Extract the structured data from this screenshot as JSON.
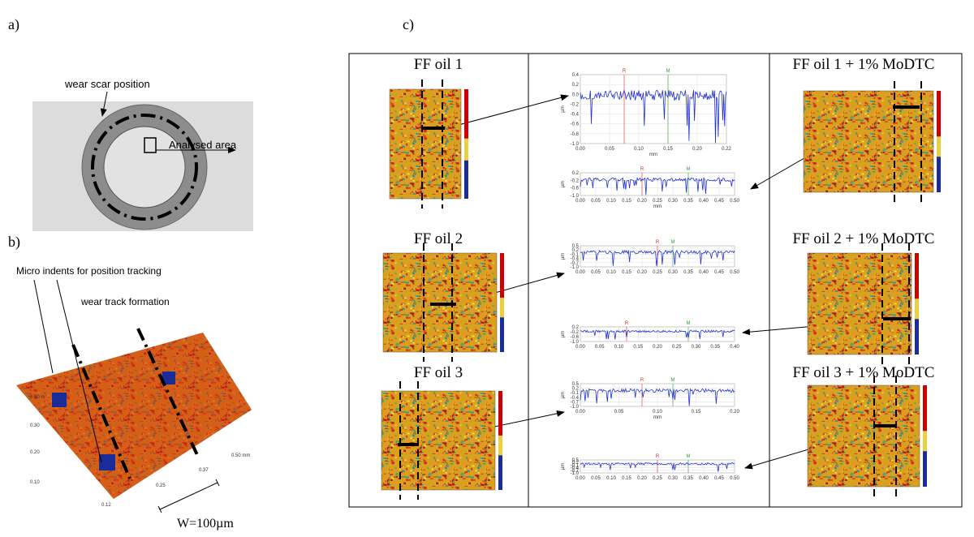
{
  "panels": {
    "a": "a)",
    "b": "b)",
    "c": "c)"
  },
  "photo": {
    "labels": [
      "wear scar position",
      "Analysed area"
    ]
  },
  "surface": {
    "labels": [
      "Micro indents for position tracking",
      "wear track formation"
    ],
    "axis_labels": [
      "0.40 m",
      "0.30",
      "0.20",
      "0.10",
      "0.12",
      "0.25",
      "0.37",
      "0.50 mm"
    ],
    "scale": "W=100µm"
  },
  "maps": [
    {
      "title": "FF oil 1"
    },
    {
      "title": "FF oil 2"
    },
    {
      "title": "FF oil 3"
    },
    {
      "title": "FF oil 1 + 1% MoDTC"
    },
    {
      "title": "FF oil 2 + 1% MoDTC"
    },
    {
      "title": "FF oil 3 + 1% MoDTC"
    }
  ],
  "profiles": [
    {
      "ylabel": "µm",
      "xlabel": "mm",
      "markers": [
        "R",
        "M"
      ],
      "yticks": [
        "0.4",
        "0.2",
        "0.0",
        "-0.2",
        "-0.4",
        "-0.6",
        "-0.8",
        "-1.0"
      ],
      "xticks": [
        "0.00",
        "0.05",
        "0.10",
        "0.15",
        "0.20",
        "0.22"
      ]
    },
    {
      "ylabel": "µm",
      "xlabel": "mm",
      "markers": [
        "R",
        "M"
      ],
      "yticks": [
        "0.2",
        "-0.2",
        "-0.6",
        "-1.0"
      ],
      "xticks": [
        "0.00",
        "0.05",
        "0.10",
        "0.15",
        "0.20",
        "0.25",
        "0.30",
        "0.35",
        "0.40",
        "0.45",
        "0.50"
      ]
    },
    {
      "ylabel": "µm",
      "markers": [
        "R",
        "M"
      ],
      "yticks": [
        "0.5",
        "0.2",
        "-0.1",
        "-0.4",
        "-0.7",
        "-1.0"
      ],
      "xticks": [
        "0.00",
        "0.05",
        "0.10",
        "0.15",
        "0.20",
        "0.25",
        "0.30",
        "0.35",
        "0.40",
        "0.45",
        "0.50"
      ]
    },
    {
      "ylabel": "µm",
      "markers": [
        "R",
        "M"
      ],
      "yticks": [
        "0.2",
        "-0.2",
        "-0.6",
        "-1.0"
      ],
      "xticks": [
        "0.00",
        "0.05",
        "0.10",
        "0.15",
        "0.20",
        "0.25",
        "0.30",
        "0.35",
        "0.40"
      ]
    },
    {
      "ylabel": "µm",
      "xlabel": "mm",
      "markers": [
        "R",
        "M"
      ],
      "yticks": [
        "0.5",
        "0.2",
        "-0.1",
        "-0.4",
        "-0.7",
        "-1.0"
      ],
      "xticks": [
        "0.00",
        "0.05",
        "0.10",
        "0.15",
        "0.20"
      ]
    },
    {
      "ylabel": "µm",
      "markers": [
        "R",
        "M"
      ],
      "yticks": [
        "0.5",
        "0.2",
        "-0.1",
        "-0.4",
        "-0.7",
        "-1.0"
      ],
      "xticks": [
        "0.00",
        "0.05",
        "0.10",
        "0.15",
        "0.20",
        "0.25",
        "0.30",
        "0.35",
        "0.40",
        "0.45",
        "0.50"
      ]
    }
  ]
}
